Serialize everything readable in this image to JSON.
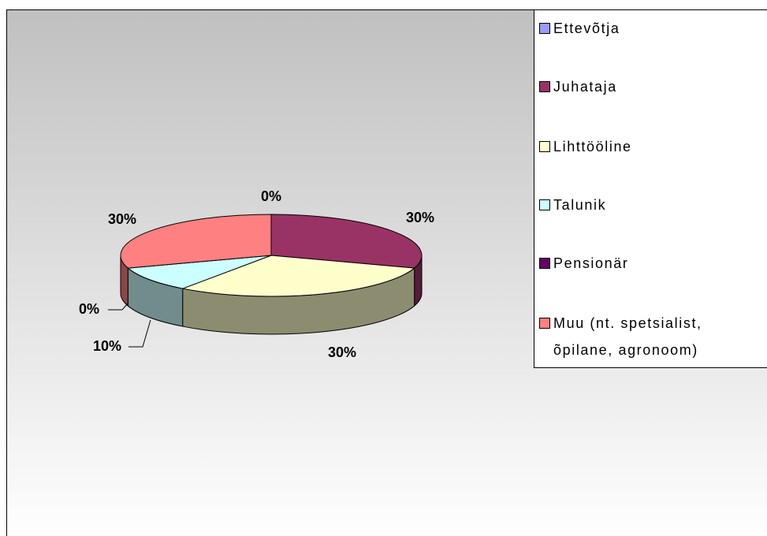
{
  "chart_data": {
    "type": "pie3d",
    "categories": [
      "Ettevõtja",
      "Juhataja",
      "Lihttööline",
      "Talunik",
      "Pensionär",
      "Muu (nt. spetsialist, õpilane, agronoom)"
    ],
    "values": [
      0,
      30,
      30,
      10,
      0,
      30
    ],
    "value_labels": [
      "0%",
      "30%",
      "30%",
      "10%",
      "0%",
      "30%"
    ],
    "colors": [
      "#9999ff",
      "#993366",
      "#ffffcc",
      "#ccffff",
      "#660066",
      "#ff8080"
    ],
    "legend": "right"
  }
}
